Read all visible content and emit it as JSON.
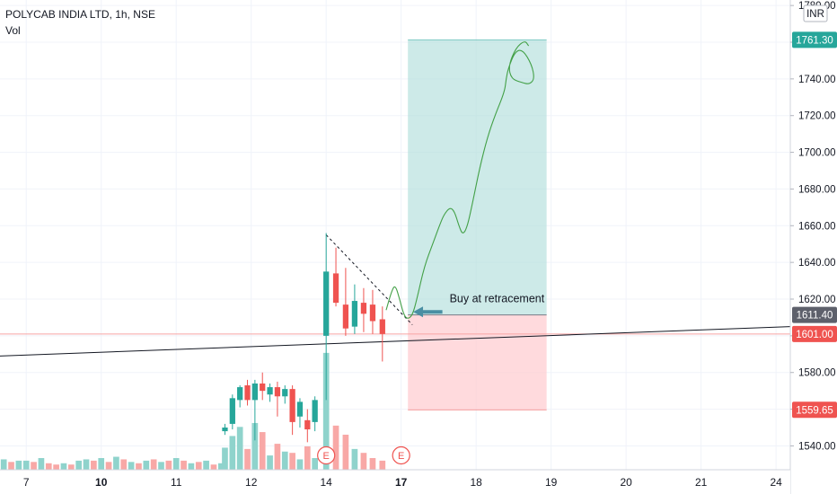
{
  "header": {
    "title": "POLYCAB INDIA LTD, 1h, NSE",
    "volume_label": "Vol"
  },
  "currency": "INR",
  "colors": {
    "up": "#26a69a",
    "down": "#ef5350",
    "profit_zone": "#b2dfdb",
    "loss_zone": "#ffcdd2",
    "target_label": "#26a69a",
    "entry_label": "#5d606b",
    "stop_label": "#ef5350",
    "current_label": "#ef5350"
  },
  "chart_data": {
    "type": "candlestick",
    "symbol": "POLYCAB INDIA LTD",
    "interval": "1h",
    "exchange": "NSE",
    "y_axis": {
      "min": 1527,
      "max": 1783,
      "ticks": [
        1540,
        1560,
        1580,
        1600,
        1620,
        1640,
        1660,
        1680,
        1700,
        1720,
        1740,
        1760,
        1780
      ],
      "tick_labels": [
        "1540.00",
        "1560.00",
        "1580.00",
        "1600.00",
        "1620.00",
        "1640.00",
        "1660.00",
        "1680.00",
        "1700.00",
        "1720.00",
        "1740.00",
        "1760.00",
        "1780.00"
      ]
    },
    "x_axis": {
      "min": 0,
      "max": 105.4,
      "ticks": [
        {
          "x": 3.5,
          "label": "7",
          "bold": false
        },
        {
          "x": 13.5,
          "label": "10",
          "bold": true
        },
        {
          "x": 23.5,
          "label": "11",
          "bold": false
        },
        {
          "x": 33.5,
          "label": "12",
          "bold": false
        },
        {
          "x": 43.5,
          "label": "14",
          "bold": false
        },
        {
          "x": 53.5,
          "label": "17",
          "bold": true
        },
        {
          "x": 63.5,
          "label": "18",
          "bold": false
        },
        {
          "x": 73.5,
          "label": "19",
          "bold": false
        },
        {
          "x": 83.5,
          "label": "20",
          "bold": false
        },
        {
          "x": 93.5,
          "label": "21",
          "bold": false
        },
        {
          "x": 103.5,
          "label": "24",
          "bold": false
        }
      ]
    },
    "candles": [
      {
        "x": 30.0,
        "o": 1548,
        "h": 1552,
        "l": 1546,
        "c": 1550
      },
      {
        "x": 31.0,
        "o": 1552,
        "h": 1568,
        "l": 1549,
        "c": 1566
      },
      {
        "x": 32.0,
        "o": 1565,
        "h": 1573,
        "l": 1561,
        "c": 1572
      },
      {
        "x": 33.0,
        "o": 1573,
        "h": 1576,
        "l": 1562,
        "c": 1565
      },
      {
        "x": 34.0,
        "o": 1565,
        "h": 1576,
        "l": 1543,
        "c": 1574
      },
      {
        "x": 35.0,
        "o": 1574,
        "h": 1580,
        "l": 1565,
        "c": 1570
      },
      {
        "x": 36.0,
        "o": 1568,
        "h": 1574,
        "l": 1564,
        "c": 1572
      },
      {
        "x": 37.0,
        "o": 1572,
        "h": 1575,
        "l": 1556,
        "c": 1567
      },
      {
        "x": 38.0,
        "o": 1567,
        "h": 1573,
        "l": 1563,
        "c": 1571
      },
      {
        "x": 39.0,
        "o": 1571,
        "h": 1573,
        "l": 1546,
        "c": 1553
      },
      {
        "x": 40.0,
        "o": 1556,
        "h": 1566,
        "l": 1550,
        "c": 1564
      },
      {
        "x": 41.0,
        "o": 1554,
        "h": 1560,
        "l": 1542,
        "c": 1549
      },
      {
        "x": 42.0,
        "o": 1553,
        "h": 1567,
        "l": 1548,
        "c": 1565
      },
      {
        "x": 43.5,
        "o": 1600,
        "h": 1656,
        "l": 1565,
        "c": 1635
      },
      {
        "x": 44.8,
        "o": 1634,
        "h": 1648,
        "l": 1616,
        "c": 1618
      },
      {
        "x": 46.1,
        "o": 1617,
        "h": 1637,
        "l": 1600,
        "c": 1604
      },
      {
        "x": 47.3,
        "o": 1605,
        "h": 1628,
        "l": 1601,
        "c": 1619
      },
      {
        "x": 48.5,
        "o": 1618,
        "h": 1626,
        "l": 1602,
        "c": 1612
      },
      {
        "x": 49.7,
        "o": 1617,
        "h": 1625,
        "l": 1601,
        "c": 1608
      },
      {
        "x": 51.0,
        "o": 1609,
        "h": 1616,
        "l": 1586,
        "c": 1601
      }
    ],
    "volume": [
      {
        "x": 0.5,
        "v": 0.4,
        "up": true
      },
      {
        "x": 1.5,
        "v": 0.3,
        "up": false
      },
      {
        "x": 2.5,
        "v": 0.35,
        "up": true
      },
      {
        "x": 3.5,
        "v": 0.35,
        "up": true
      },
      {
        "x": 4.5,
        "v": 0.3,
        "up": false
      },
      {
        "x": 5.5,
        "v": 0.45,
        "up": true
      },
      {
        "x": 6.5,
        "v": 0.25,
        "up": false
      },
      {
        "x": 7.5,
        "v": 0.2,
        "up": false
      },
      {
        "x": 8.5,
        "v": 0.25,
        "up": true
      },
      {
        "x": 9.5,
        "v": 0.2,
        "up": false
      },
      {
        "x": 10.5,
        "v": 0.35,
        "up": true
      },
      {
        "x": 11.5,
        "v": 0.4,
        "up": true
      },
      {
        "x": 12.5,
        "v": 0.35,
        "up": false
      },
      {
        "x": 13.5,
        "v": 0.45,
        "up": true
      },
      {
        "x": 14.5,
        "v": 0.3,
        "up": false
      },
      {
        "x": 15.5,
        "v": 0.5,
        "up": true
      },
      {
        "x": 16.5,
        "v": 0.4,
        "up": false
      },
      {
        "x": 17.5,
        "v": 0.3,
        "up": true
      },
      {
        "x": 18.5,
        "v": 0.25,
        "up": false
      },
      {
        "x": 19.5,
        "v": 0.35,
        "up": true
      },
      {
        "x": 20.5,
        "v": 0.4,
        "up": false
      },
      {
        "x": 21.5,
        "v": 0.3,
        "up": true
      },
      {
        "x": 22.5,
        "v": 0.35,
        "up": false
      },
      {
        "x": 23.5,
        "v": 0.45,
        "up": true
      },
      {
        "x": 24.5,
        "v": 0.35,
        "up": false
      },
      {
        "x": 25.5,
        "v": 0.25,
        "up": true
      },
      {
        "x": 26.5,
        "v": 0.3,
        "up": false
      },
      {
        "x": 27.5,
        "v": 0.35,
        "up": true
      },
      {
        "x": 28.5,
        "v": 0.2,
        "up": false
      },
      {
        "x": 29.5,
        "v": 0.25,
        "up": true
      },
      {
        "x": 30.0,
        "v": 0.85,
        "up": true
      },
      {
        "x": 31.0,
        "v": 1.3,
        "up": true
      },
      {
        "x": 32.0,
        "v": 1.65,
        "up": true
      },
      {
        "x": 33.0,
        "v": 0.8,
        "up": false
      },
      {
        "x": 34.0,
        "v": 1.8,
        "up": true
      },
      {
        "x": 35.0,
        "v": 1.45,
        "up": false
      },
      {
        "x": 36.0,
        "v": 0.55,
        "up": true
      },
      {
        "x": 37.0,
        "v": 1.0,
        "up": false
      },
      {
        "x": 38.0,
        "v": 0.7,
        "up": true
      },
      {
        "x": 39.0,
        "v": 0.65,
        "up": false
      },
      {
        "x": 40.0,
        "v": 0.4,
        "up": true
      },
      {
        "x": 41.0,
        "v": 0.9,
        "up": false
      },
      {
        "x": 42.0,
        "v": 0.45,
        "up": true
      },
      {
        "x": 43.5,
        "v": 4.5,
        "up": true
      },
      {
        "x": 44.8,
        "v": 1.7,
        "up": false
      },
      {
        "x": 46.1,
        "v": 1.35,
        "up": false
      },
      {
        "x": 47.3,
        "v": 0.8,
        "up": true
      },
      {
        "x": 48.5,
        "v": 0.65,
        "up": false
      },
      {
        "x": 49.7,
        "v": 0.45,
        "up": false
      },
      {
        "x": 51.0,
        "v": 0.35,
        "up": false
      }
    ],
    "volume_max": 4.6,
    "earnings_markers": [
      {
        "x": 43.5,
        "label": "E"
      },
      {
        "x": 53.5,
        "label": "E"
      }
    ],
    "trendline": {
      "x1": 0,
      "y1": 1589,
      "x2": 105.4,
      "y2": 1605
    },
    "dashed_trendline": {
      "x1": 43.5,
      "y1": 1655,
      "x2": 55.0,
      "y2": 1606
    },
    "current_price_line": 1601.0,
    "position": {
      "x_start": 54.4,
      "x_end": 72.9,
      "target": 1761.3,
      "entry": 1611.4,
      "stop": 1559.65,
      "target_label": "1761.30",
      "entry_label": "1611.40",
      "stop_label": "1559.65",
      "current_label": "1601.00"
    },
    "annotation": {
      "text": "Buy at retracement",
      "arrow_from": {
        "x": 59.0,
        "y": 1613
      },
      "arrow_to": {
        "x": 55.1,
        "y": 1613
      }
    },
    "projection_path": [
      [
        51.5,
        1614
      ],
      [
        52.2,
        1624
      ],
      [
        52.7,
        1628
      ],
      [
        53.3,
        1620
      ],
      [
        53.8,
        1612
      ],
      [
        54.3,
        1609
      ],
      [
        55.0,
        1611
      ],
      [
        55.6,
        1620
      ],
      [
        56.6,
        1638
      ],
      [
        57.8,
        1651
      ],
      [
        58.6,
        1660
      ],
      [
        59.2,
        1666
      ],
      [
        60.0,
        1670
      ],
      [
        60.6,
        1668
      ],
      [
        61.2,
        1660
      ],
      [
        61.7,
        1655
      ],
      [
        62.3,
        1659
      ],
      [
        63.0,
        1672
      ],
      [
        64.0,
        1692
      ],
      [
        65.0,
        1708
      ],
      [
        66.0,
        1720
      ],
      [
        67.3,
        1733
      ],
      [
        67.5,
        1740
      ],
      [
        67.8,
        1746
      ],
      [
        68.7,
        1755
      ],
      [
        69.7,
        1756
      ],
      [
        70.9,
        1748
      ],
      [
        71.3,
        1740
      ],
      [
        70.6,
        1737
      ],
      [
        69.6,
        1738
      ],
      [
        68.2,
        1740
      ],
      [
        67.8,
        1747
      ],
      [
        68.8,
        1757
      ],
      [
        70.0,
        1761
      ],
      [
        70.5,
        1758
      ]
    ]
  }
}
